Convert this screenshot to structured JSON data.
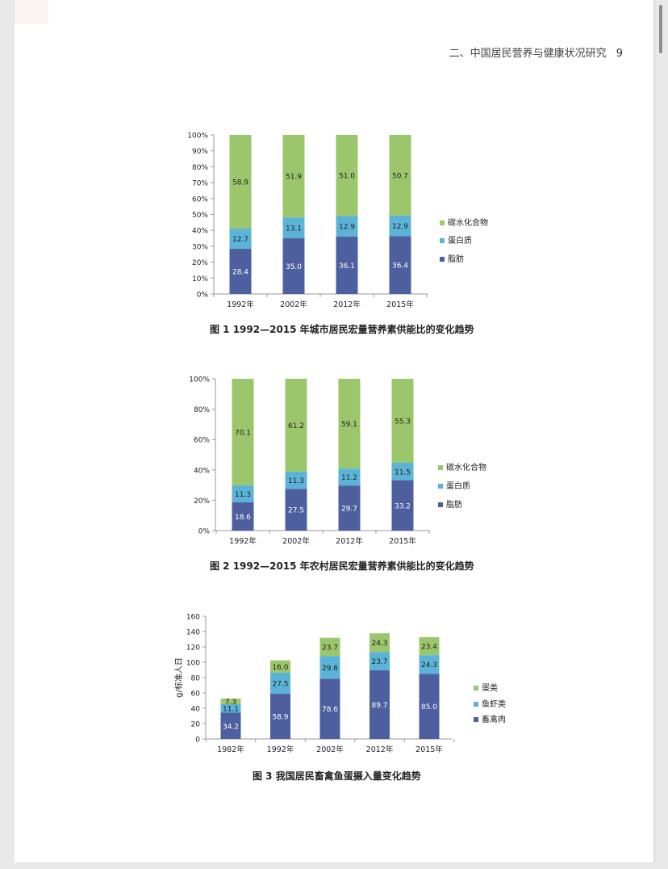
{
  "header": {
    "title": "二、中国居民营养与健康状况研究",
    "page_number": "9"
  },
  "colors": {
    "fat": "#4e5fa0",
    "protein": "#5bb4d8",
    "carb": "#9cc66b"
  },
  "figures": [
    {
      "caption": "图 1    1992—2015 年城市居民宏量营养素供能比的变化趋势"
    },
    {
      "caption": "图 2    1992—2015 年农村居民宏量营养素供能比的变化趋势"
    },
    {
      "caption": "图 3    我国居民畜禽鱼蛋摄入量变化趋势"
    }
  ],
  "chart_data": [
    {
      "type": "bar",
      "stacked": true,
      "categories": [
        "1992年",
        "2002年",
        "2012年",
        "2015年"
      ],
      "series": [
        {
          "name": "脂肪",
          "values": [
            28.4,
            35.0,
            36.1,
            36.4
          ]
        },
        {
          "name": "蛋白质",
          "values": [
            12.7,
            13.1,
            12.9,
            12.9
          ]
        },
        {
          "name": "碳水化合物",
          "values": [
            58.9,
            51.9,
            51.0,
            50.7
          ]
        }
      ],
      "value_labels": [
        [
          "28.4",
          "35.0",
          "36.1",
          "36.4"
        ],
        [
          "12.7",
          "13.1",
          "12.9",
          "12.9"
        ],
        [
          "58.9",
          "51.9",
          "51.0",
          "50.7"
        ]
      ],
      "ylim": [
        0,
        100
      ],
      "yticks": [
        "0%",
        "10%",
        "20%",
        "30%",
        "40%",
        "50%",
        "60%",
        "70%",
        "80%",
        "90%",
        "100%"
      ],
      "legend_position": "right",
      "grid": false
    },
    {
      "type": "bar",
      "stacked": true,
      "categories": [
        "1992年",
        "2002年",
        "2012年",
        "2015年"
      ],
      "series": [
        {
          "name": "脂肪",
          "values": [
            18.6,
            27.5,
            29.7,
            33.2
          ]
        },
        {
          "name": "蛋白质",
          "values": [
            11.3,
            11.3,
            11.2,
            11.5
          ]
        },
        {
          "name": "碳水化合物",
          "values": [
            70.1,
            61.2,
            59.1,
            55.3
          ]
        }
      ],
      "value_labels": [
        [
          "18.6",
          "27.5",
          "29.7",
          "33.2"
        ],
        [
          "11.3",
          "11.3",
          "11.2",
          "11.5"
        ],
        [
          "70.1",
          "61.2",
          "59.1",
          "55.3"
        ]
      ],
      "ylim": [
        0,
        100
      ],
      "yticks": [
        "0%",
        "20%",
        "40%",
        "60%",
        "80%",
        "100%"
      ],
      "legend_position": "right",
      "grid": false
    },
    {
      "type": "bar",
      "stacked": true,
      "categories": [
        "1982年",
        "1992年",
        "2002年",
        "2012年",
        "2015年"
      ],
      "series": [
        {
          "name": "畜禽肉",
          "values": [
            34.2,
            58.9,
            78.6,
            89.7,
            85.0
          ]
        },
        {
          "name": "鱼虾类",
          "values": [
            11.1,
            27.5,
            29.6,
            23.7,
            24.3
          ]
        },
        {
          "name": "蛋类",
          "values": [
            7.3,
            16.0,
            23.7,
            24.3,
            23.4
          ]
        }
      ],
      "value_labels": [
        [
          "34.2",
          "58.9",
          "78.6",
          "89.7",
          "85.0"
        ],
        [
          "11.1",
          "27.5",
          "29.6",
          "23.7",
          "24.3"
        ],
        [
          "7.3",
          "16.0",
          "23.7",
          "24.3",
          "23.4"
        ]
      ],
      "ylim": [
        0,
        160
      ],
      "yticks": [
        "0",
        "20",
        "40",
        "60",
        "80",
        "100",
        "120",
        "140",
        "160"
      ],
      "ylabel": "g/标准人日",
      "legend_position": "right",
      "grid": false
    }
  ]
}
